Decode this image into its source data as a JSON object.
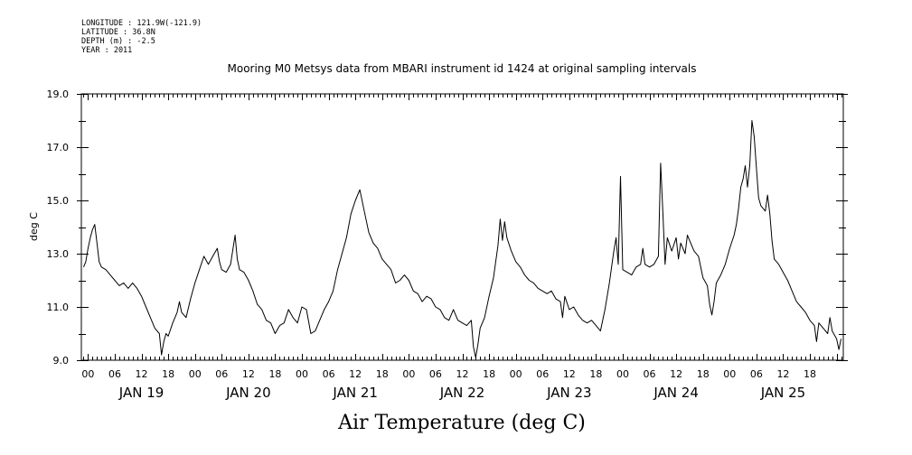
{
  "meta": {
    "longitude": "LONGITUDE : 121.9W(-121.9)",
    "latitude": "LATITUDE : 36.8N",
    "depth": "DEPTH (m) : -2.5",
    "year": "YEAR : 2011"
  },
  "chart_data": {
    "type": "line",
    "title": "Mooring M0 Metsys data from MBARI instrument id 1424 at original sampling intervals",
    "xlabel": "Air Temperature (deg C)",
    "ylabel": "deg C",
    "ylim": [
      9.0,
      19.0
    ],
    "yticks": [
      "9.0",
      "11.0",
      "13.0",
      "15.0",
      "17.0",
      "19.0"
    ],
    "xlim_hours": [
      -1.5,
      169.5
    ],
    "x_units": "hours from 00:00 JAN 19 2011",
    "hour_tick_labels": [
      "00",
      "06",
      "12",
      "18",
      "00",
      "06",
      "12",
      "18",
      "00",
      "06",
      "12",
      "18",
      "00",
      "06",
      "12",
      "18",
      "00",
      "06",
      "12",
      "18",
      "00",
      "06",
      "12",
      "18",
      "00",
      "06",
      "12",
      "18"
    ],
    "day_labels": [
      "JAN 19",
      "JAN 20",
      "JAN 21",
      "JAN 22",
      "JAN 23",
      "JAN 24",
      "JAN 25"
    ],
    "grid": false,
    "legend": "none",
    "line_color": "#000000",
    "series": [
      {
        "points": [
          [
            -1.0,
            12.5
          ],
          [
            -0.5,
            12.7
          ],
          [
            0,
            13.2
          ],
          [
            0.5,
            13.6
          ],
          [
            1,
            13.9
          ],
          [
            1.5,
            14.1
          ],
          [
            2,
            13.4
          ],
          [
            2.5,
            12.7
          ],
          [
            3,
            12.5
          ],
          [
            4,
            12.4
          ],
          [
            5,
            12.2
          ],
          [
            6,
            12.0
          ],
          [
            7,
            11.8
          ],
          [
            8,
            11.9
          ],
          [
            9,
            11.7
          ],
          [
            10,
            11.9
          ],
          [
            11,
            11.7
          ],
          [
            12,
            11.4
          ],
          [
            13,
            11.0
          ],
          [
            14,
            10.6
          ],
          [
            15,
            10.2
          ],
          [
            16,
            10.0
          ],
          [
            16.5,
            9.2
          ],
          [
            17,
            9.7
          ],
          [
            17.5,
            10.0
          ],
          [
            18,
            9.9
          ],
          [
            19,
            10.4
          ],
          [
            20,
            10.8
          ],
          [
            20.5,
            11.2
          ],
          [
            21,
            10.8
          ],
          [
            22,
            10.6
          ],
          [
            23,
            11.3
          ],
          [
            24,
            11.9
          ],
          [
            25,
            12.4
          ],
          [
            26,
            12.9
          ],
          [
            27,
            12.6
          ],
          [
            28,
            12.9
          ],
          [
            29,
            13.2
          ],
          [
            29.5,
            12.7
          ],
          [
            30,
            12.4
          ],
          [
            31,
            12.3
          ],
          [
            32,
            12.6
          ],
          [
            33,
            13.7
          ],
          [
            33.5,
            12.8
          ],
          [
            34,
            12.4
          ],
          [
            35,
            12.3
          ],
          [
            36,
            12.0
          ],
          [
            37,
            11.6
          ],
          [
            38,
            11.1
          ],
          [
            39,
            10.9
          ],
          [
            40,
            10.5
          ],
          [
            41,
            10.4
          ],
          [
            42,
            10.0
          ],
          [
            43,
            10.3
          ],
          [
            44,
            10.4
          ],
          [
            45,
            10.9
          ],
          [
            46,
            10.6
          ],
          [
            47,
            10.4
          ],
          [
            48,
            11.0
          ],
          [
            49,
            10.9
          ],
          [
            50,
            10.0
          ],
          [
            51,
            10.1
          ],
          [
            52,
            10.5
          ],
          [
            53,
            10.9
          ],
          [
            54,
            11.2
          ],
          [
            55,
            11.6
          ],
          [
            56,
            12.4
          ],
          [
            57,
            13.0
          ],
          [
            58,
            13.6
          ],
          [
            59,
            14.5
          ],
          [
            60,
            15.0
          ],
          [
            61,
            15.4
          ],
          [
            62,
            14.6
          ],
          [
            63,
            13.8
          ],
          [
            64,
            13.4
          ],
          [
            65,
            13.2
          ],
          [
            66,
            12.8
          ],
          [
            67,
            12.6
          ],
          [
            68,
            12.4
          ],
          [
            69,
            11.9
          ],
          [
            70,
            12.0
          ],
          [
            71,
            12.2
          ],
          [
            72,
            12.0
          ],
          [
            73,
            11.6
          ],
          [
            74,
            11.5
          ],
          [
            75,
            11.2
          ],
          [
            76,
            11.4
          ],
          [
            77,
            11.3
          ],
          [
            78,
            11.0
          ],
          [
            79,
            10.9
          ],
          [
            80,
            10.6
          ],
          [
            81,
            10.5
          ],
          [
            82,
            10.9
          ],
          [
            83,
            10.5
          ],
          [
            84,
            10.4
          ],
          [
            85,
            10.3
          ],
          [
            86,
            10.5
          ],
          [
            86.5,
            9.5
          ],
          [
            87,
            9.1
          ],
          [
            87.5,
            9.6
          ],
          [
            88,
            10.2
          ],
          [
            89,
            10.6
          ],
          [
            90,
            11.4
          ],
          [
            91,
            12.1
          ],
          [
            92,
            13.3
          ],
          [
            92.5,
            14.3
          ],
          [
            93,
            13.5
          ],
          [
            93.5,
            14.2
          ],
          [
            94,
            13.6
          ],
          [
            95,
            13.1
          ],
          [
            96,
            12.7
          ],
          [
            97,
            12.5
          ],
          [
            98,
            12.2
          ],
          [
            99,
            12.0
          ],
          [
            100,
            11.9
          ],
          [
            101,
            11.7
          ],
          [
            102,
            11.6
          ],
          [
            103,
            11.5
          ],
          [
            104,
            11.6
          ],
          [
            105,
            11.3
          ],
          [
            106,
            11.2
          ],
          [
            106.5,
            10.6
          ],
          [
            107,
            11.4
          ],
          [
            108,
            10.9
          ],
          [
            109,
            11.0
          ],
          [
            110,
            10.7
          ],
          [
            111,
            10.5
          ],
          [
            112,
            10.4
          ],
          [
            113,
            10.5
          ],
          [
            114,
            10.3
          ],
          [
            115,
            10.1
          ],
          [
            116,
            10.9
          ],
          [
            117,
            11.9
          ],
          [
            118,
            13.1
          ],
          [
            118.5,
            13.6
          ],
          [
            119,
            12.6
          ],
          [
            119.5,
            15.9
          ],
          [
            120,
            12.4
          ],
          [
            121,
            12.3
          ],
          [
            122,
            12.2
          ],
          [
            123,
            12.5
          ],
          [
            124,
            12.6
          ],
          [
            124.5,
            13.2
          ],
          [
            125,
            12.6
          ],
          [
            126,
            12.5
          ],
          [
            127,
            12.6
          ],
          [
            128,
            12.9
          ],
          [
            128.5,
            16.4
          ],
          [
            129,
            14.6
          ],
          [
            129.5,
            12.6
          ],
          [
            130,
            13.6
          ],
          [
            131,
            13.1
          ],
          [
            132,
            13.6
          ],
          [
            132.5,
            12.8
          ],
          [
            133,
            13.4
          ],
          [
            134,
            13.0
          ],
          [
            134.5,
            13.7
          ],
          [
            135,
            13.5
          ],
          [
            136,
            13.1
          ],
          [
            137,
            12.9
          ],
          [
            138,
            12.1
          ],
          [
            139,
            11.8
          ],
          [
            139.5,
            11.1
          ],
          [
            140,
            10.7
          ],
          [
            140.5,
            11.2
          ],
          [
            141,
            11.9
          ],
          [
            142,
            12.2
          ],
          [
            143,
            12.6
          ],
          [
            144,
            13.2
          ],
          [
            145,
            13.7
          ],
          [
            145.5,
            14.1
          ],
          [
            146,
            14.7
          ],
          [
            146.5,
            15.5
          ],
          [
            147,
            15.8
          ],
          [
            147.5,
            16.3
          ],
          [
            148,
            15.5
          ],
          [
            148.5,
            16.3
          ],
          [
            149,
            18.0
          ],
          [
            149.5,
            17.4
          ],
          [
            150,
            16.2
          ],
          [
            150.5,
            15.1
          ],
          [
            151,
            14.8
          ],
          [
            152,
            14.6
          ],
          [
            152.5,
            15.2
          ],
          [
            153,
            14.5
          ],
          [
            153.5,
            13.5
          ],
          [
            154,
            12.8
          ],
          [
            155,
            12.6
          ],
          [
            156,
            12.3
          ],
          [
            157,
            12.0
          ],
          [
            158,
            11.6
          ],
          [
            159,
            11.2
          ],
          [
            160,
            11.0
          ],
          [
            161,
            10.8
          ],
          [
            162,
            10.5
          ],
          [
            163,
            10.3
          ],
          [
            163.5,
            9.7
          ],
          [
            164,
            10.4
          ],
          [
            165,
            10.2
          ],
          [
            166,
            10.0
          ],
          [
            166.5,
            10.6
          ],
          [
            167,
            10.1
          ],
          [
            168,
            9.8
          ],
          [
            168.5,
            9.4
          ],
          [
            169,
            9.8
          ]
        ]
      }
    ]
  }
}
